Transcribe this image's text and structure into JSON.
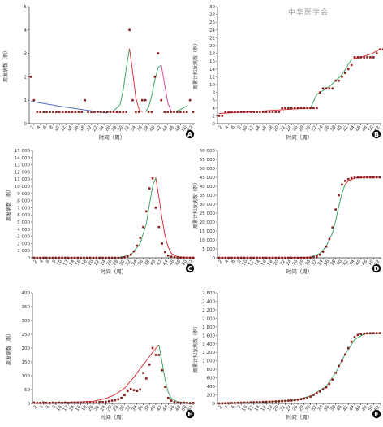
{
  "watermark": "中华医学会",
  "xticks": [
    "2",
    "4",
    "6",
    "8",
    "10",
    "12",
    "14",
    "16",
    "18",
    "20",
    "22",
    "24",
    "26",
    "28",
    "30",
    "32",
    "34",
    "36",
    "38",
    "40",
    "42",
    "44",
    "46",
    "48",
    "50",
    "52"
  ],
  "colors": {
    "point": "#8b1c1c",
    "fit_red": "#d9222a",
    "fit_green": "#2e9e5a",
    "fit_blue": "#3a5fb5",
    "fit_pink": "#e0408e",
    "badge": "#111111"
  },
  "chart_data": [
    {
      "id": "A",
      "type": "scatter",
      "panel_label": "A",
      "xlabel": "时间（周）",
      "ylabel": "周发病数（例）",
      "ylim": [
        0,
        5
      ],
      "yticks": [
        0,
        1,
        2,
        3,
        4,
        5
      ],
      "ytick_labels": [
        "0",
        "1",
        "2",
        "3",
        "4",
        "5"
      ],
      "points": [
        2,
        1,
        0.5,
        0.5,
        0.5,
        0.5,
        0.5,
        0.5,
        0.5,
        0.5,
        0.5,
        0.5,
        0.5,
        0.5,
        0.5,
        0.5,
        0.5,
        1,
        0.5,
        0.5,
        0.5,
        0.5,
        0.5,
        0.5,
        0.5,
        0.5,
        0.5,
        0.5,
        0.5,
        0.5,
        0.5,
        4,
        1,
        0.5,
        0.5,
        1,
        1,
        0.5,
        0.5,
        2,
        3,
        1,
        0.5,
        0.5,
        0.5,
        0.5,
        0.5,
        0.5,
        0.5,
        0.5,
        1,
        0.5
      ],
      "fits": [
        {
          "color": "fit_blue",
          "x": [
            1,
            12,
            25
          ],
          "y": [
            0.95,
            0.7,
            0.45
          ]
        },
        {
          "color": "fit_green",
          "x": [
            25,
            27,
            29,
            30,
            31,
            32
          ],
          "y": [
            0.5,
            0.55,
            0.8,
            1.4,
            2.4,
            3.2
          ]
        },
        {
          "color": "fit_red",
          "x": [
            32,
            33,
            34,
            35,
            36
          ],
          "y": [
            3.2,
            2.2,
            1.1,
            0.6,
            0.5
          ]
        },
        {
          "color": "fit_green",
          "x": [
            37,
            38,
            39,
            40,
            41,
            42
          ],
          "y": [
            0.5,
            0.7,
            1.2,
            1.9,
            2.4,
            2.5
          ]
        },
        {
          "color": "fit_pink",
          "x": [
            42,
            43,
            44,
            45,
            46
          ],
          "y": [
            2.5,
            1.7,
            0.9,
            0.55,
            0.5
          ]
        },
        {
          "color": "fit_green",
          "x": [
            46,
            48,
            50
          ],
          "y": [
            0.5,
            0.6,
            0.75
          ]
        }
      ]
    },
    {
      "id": "B",
      "type": "scatter",
      "panel_label": "B",
      "xlabel": "时间（周）",
      "ylabel": "周累计和发病数（例）",
      "ylim": [
        0,
        30
      ],
      "yticks": [
        0,
        2,
        4,
        6,
        8,
        10,
        12,
        14,
        16,
        18,
        20,
        22,
        24,
        26,
        28,
        30
      ],
      "ytick_labels": [
        "0",
        "2",
        "4",
        "6",
        "8",
        "10",
        "12",
        "14",
        "16",
        "18",
        "20",
        "22",
        "24",
        "26",
        "28",
        "30"
      ],
      "points": [
        2,
        2,
        3,
        3,
        3,
        3,
        3,
        3,
        3,
        3,
        3,
        3,
        3,
        3,
        3,
        3,
        3,
        3,
        3,
        3,
        4,
        4,
        4,
        4,
        4,
        4,
        4,
        4,
        4,
        4,
        4,
        4,
        8,
        9,
        9,
        9,
        9,
        11,
        11,
        12,
        13,
        14,
        15,
        17,
        17,
        17,
        17,
        17,
        17,
        17,
        18,
        19,
        19
      ],
      "fits": [
        {
          "color": "fit_red",
          "x": [
            1,
            10,
            20,
            30
          ],
          "y": [
            2.6,
            3,
            3.5,
            4
          ]
        },
        {
          "color": "fit_green",
          "x": [
            30,
            32,
            36,
            40,
            43
          ],
          "y": [
            4,
            7.5,
            9.5,
            12.5,
            16.5
          ]
        },
        {
          "color": "fit_red",
          "x": [
            43,
            46,
            49,
            52
          ],
          "y": [
            16.5,
            17,
            17.8,
            19
          ]
        }
      ]
    },
    {
      "id": "C",
      "type": "scatter",
      "panel_label": "C",
      "xlabel": "时间（周）",
      "ylabel": "周发病数（例）",
      "ylim": [
        0,
        15000
      ],
      "yticks": [
        0,
        1000,
        2000,
        3000,
        4000,
        5000,
        6000,
        7000,
        8000,
        9000,
        10000,
        11000,
        12000,
        13000,
        14000,
        15000
      ],
      "ytick_labels": [
        "0",
        "1 000",
        "2 000",
        "3 000",
        "4 000",
        "5 000",
        "6 000",
        "7 000",
        "8 000",
        "9 000",
        "10 000",
        "11 000",
        "12 000",
        "13 000",
        "14 000",
        "15 000"
      ],
      "points": [
        0,
        0,
        0,
        0,
        0,
        0,
        0,
        0,
        0,
        0,
        0,
        0,
        0,
        0,
        0,
        0,
        0,
        0,
        0,
        0,
        0,
        0,
        0,
        0,
        0,
        0,
        0,
        0,
        30,
        80,
        200,
        450,
        900,
        1700,
        2800,
        4300,
        6500,
        9700,
        11100,
        7000,
        4300,
        2000,
        800,
        300,
        150,
        100,
        50,
        30,
        20,
        10,
        5,
        5
      ],
      "fits": [
        {
          "color": "fit_green",
          "x": [
            28,
            32,
            35,
            37,
            38,
            39,
            40
          ],
          "y": [
            0,
            400,
            2000,
            4800,
            7500,
            10000,
            11200
          ]
        },
        {
          "color": "fit_red",
          "x": [
            40,
            41,
            42,
            43,
            44,
            45,
            47,
            52
          ],
          "y": [
            11200,
            8500,
            5500,
            3000,
            1500,
            600,
            150,
            0
          ]
        }
      ]
    },
    {
      "id": "D",
      "type": "scatter",
      "panel_label": "D",
      "xlabel": "时间（周）",
      "ylabel": "周累计和发病数（例）",
      "ylim": [
        0,
        60000
      ],
      "yticks": [
        0,
        5000,
        10000,
        15000,
        20000,
        25000,
        30000,
        35000,
        40000,
        45000,
        50000,
        55000,
        60000
      ],
      "ytick_labels": [
        "0",
        "5 000",
        "10 000",
        "15 000",
        "20 000",
        "25 000",
        "30 000",
        "35 000",
        "40 000",
        "45 000",
        "50 000",
        "55 000",
        "60 000"
      ],
      "points": [
        0,
        0,
        0,
        0,
        0,
        0,
        0,
        0,
        0,
        0,
        0,
        0,
        0,
        0,
        0,
        0,
        0,
        0,
        0,
        0,
        0,
        0,
        0,
        0,
        0,
        0,
        0,
        0,
        50,
        150,
        350,
        800,
        1700,
        3400,
        6200,
        10500,
        17000,
        27000,
        35000,
        41000,
        43000,
        44000,
        44500,
        44800,
        45000,
        45000,
        45000,
        45000,
        45000,
        45000,
        45000,
        45000
      ],
      "fits": [
        {
          "color": "fit_red",
          "x": [
            1,
            20,
            30
          ],
          "y": [
            0,
            0,
            300
          ]
        },
        {
          "color": "fit_green",
          "x": [
            30,
            33,
            35,
            37,
            38,
            39,
            40,
            41
          ],
          "y": [
            300,
            2500,
            6500,
            14000,
            21000,
            29000,
            36000,
            41000
          ]
        },
        {
          "color": "fit_red",
          "x": [
            41,
            42,
            44,
            47,
            52
          ],
          "y": [
            41000,
            43000,
            44500,
            45000,
            45000
          ]
        }
      ]
    },
    {
      "id": "E",
      "type": "scatter",
      "panel_label": "E",
      "xlabel": "时间（周）",
      "ylabel": "周发病数（例）",
      "ylim": [
        0,
        400
      ],
      "yticks": [
        0,
        50,
        100,
        150,
        200,
        250,
        300,
        350,
        400
      ],
      "ytick_labels": [
        "0",
        "50",
        "100",
        "150",
        "200",
        "250",
        "300",
        "350",
        "400"
      ],
      "points": [
        3,
        2,
        2,
        3,
        2,
        2,
        3,
        2,
        3,
        2,
        3,
        2,
        3,
        3,
        2,
        3,
        3,
        4,
        3,
        3,
        4,
        5,
        5,
        6,
        8,
        10,
        12,
        15,
        20,
        30,
        45,
        52,
        48,
        45,
        50,
        110,
        90,
        140,
        200,
        175,
        175,
        120,
        60,
        20,
        10,
        5,
        3,
        2,
        3,
        2,
        1,
        2
      ],
      "fits": [
        {
          "color": "fit_red",
          "x": [
            1,
            10,
            20,
            24,
            27,
            30,
            33,
            36,
            39,
            41
          ],
          "y": [
            0,
            3,
            8,
            18,
            32,
            55,
            95,
            140,
            185,
            212
          ]
        },
        {
          "color": "fit_green",
          "x": [
            41,
            42,
            43,
            44,
            45,
            47,
            50,
            52
          ],
          "y": [
            212,
            150,
            85,
            40,
            18,
            6,
            2,
            1
          ]
        }
      ]
    },
    {
      "id": "F",
      "type": "scatter",
      "panel_label": "F",
      "xlabel": "时间（周）",
      "ylabel": "周累计和发病数（例）",
      "ylim": [
        0,
        2600
      ],
      "yticks": [
        0,
        200,
        400,
        600,
        800,
        1000,
        1200,
        1400,
        1600,
        1800,
        2000,
        2200,
        2400,
        2600
      ],
      "ytick_labels": [
        "0",
        "200",
        "400",
        "600",
        "800",
        "1 000",
        "1 200",
        "1 400",
        "1 600",
        "1 800",
        "2 000",
        "2 200",
        "2 400",
        "2 600"
      ],
      "points": [
        0,
        3,
        5,
        8,
        10,
        13,
        15,
        17,
        20,
        22,
        25,
        27,
        30,
        33,
        35,
        38,
        40,
        44,
        47,
        50,
        55,
        60,
        65,
        70,
        78,
        88,
        100,
        115,
        130,
        160,
        200,
        240,
        280,
        330,
        380,
        460,
        560,
        720,
        880,
        1000,
        1150,
        1300,
        1450,
        1560,
        1610,
        1630,
        1640,
        1645,
        1648,
        1650,
        1650,
        1652
      ],
      "fits": [
        {
          "color": "fit_green",
          "x": [
            1,
            15,
            25,
            30,
            35,
            38,
            41,
            44,
            47,
            52
          ],
          "y": [
            0,
            30,
            80,
            170,
            400,
            720,
            1150,
            1500,
            1630,
            1652
          ]
        }
      ]
    }
  ]
}
